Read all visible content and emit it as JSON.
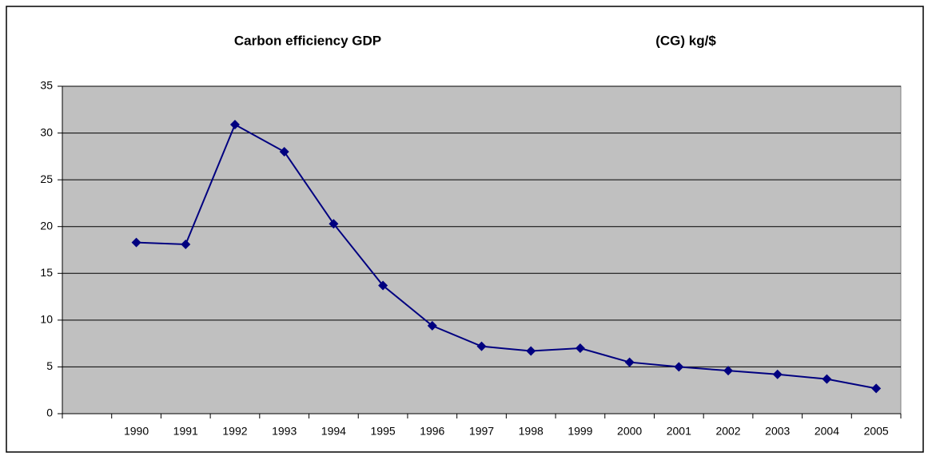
{
  "chart_data": {
    "type": "line",
    "title": "Carbon efficiency GDP",
    "title_units": "(CG) kg/$",
    "categories": [
      null,
      "1990",
      "1991",
      "1992",
      "1993",
      "1994",
      "1995",
      "1996",
      "1997",
      "1998",
      "1999",
      "2000",
      "2001",
      "2002",
      "2003",
      "2004",
      "2005"
    ],
    "series": [
      {
        "color": "#000080",
        "values": [
          null,
          18.3,
          18.1,
          30.9,
          28.0,
          20.3,
          13.7,
          9.4,
          7.2,
          6.7,
          7.0,
          5.5,
          5.0,
          4.6,
          4.2,
          3.7,
          2.7
        ]
      }
    ],
    "ylim": [
      0,
      35
    ],
    "yticks": [
      0,
      5,
      10,
      15,
      20,
      25,
      30,
      35
    ],
    "grid": true,
    "plot_background": "#c0c0c0"
  }
}
